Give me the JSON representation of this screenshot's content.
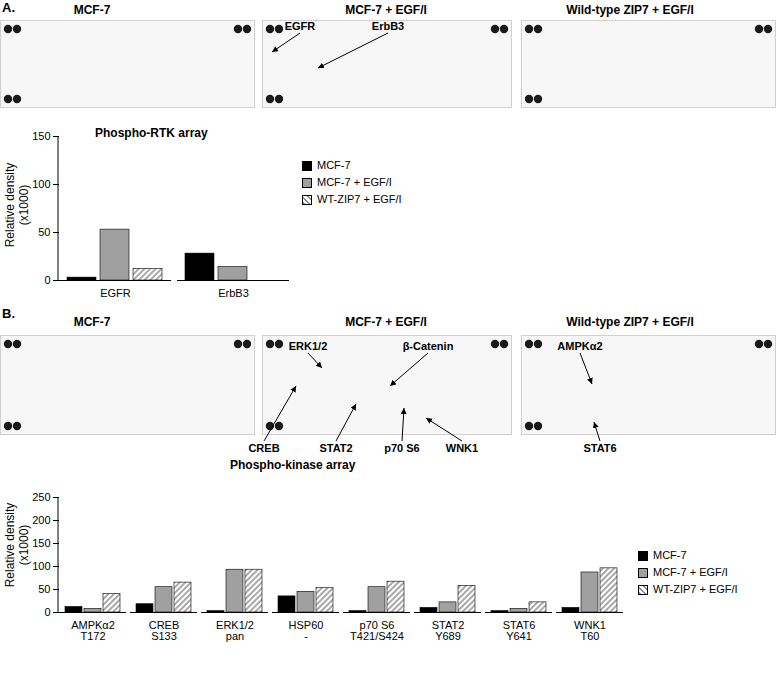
{
  "panel_labels": [
    "A.",
    "B."
  ],
  "blots": [
    {
      "panel": "A.",
      "titles": [
        "MCF-7",
        "MCF-7 + EGF/I",
        "Wild-type ZIP7 + EGF/I"
      ],
      "annotations": [
        "EGFR",
        "ErbB3"
      ]
    },
    {
      "panel": "B.",
      "titles": [
        "MCF-7",
        "MCF-7 + EGF/I",
        "Wild-type ZIP7 + EGF/I"
      ],
      "annotations": [
        "ERK1/2",
        "β-Catenin",
        "CREB",
        "STAT2",
        "p70 S6",
        "WNK1",
        "AMPKα2",
        "STAT6"
      ]
    }
  ],
  "chart_data": [
    {
      "type": "bar",
      "title": "Phospho-RTK array",
      "y_label": "Relative density (x1000)",
      "categories": [
        "EGFR",
        "ErbB3"
      ],
      "series": [
        {
          "name": "MCF-7",
          "color": "#000000",
          "values": [
            3,
            28
          ]
        },
        {
          "name": "MCF-7 + EGF/I",
          "color": "#a0a0a0",
          "values": [
            53,
            14
          ]
        },
        {
          "name": "WT-ZIP7 + EGF/I",
          "color": "#8c8c8c",
          "marker": "hatch",
          "values": [
            12,
            0
          ]
        }
      ],
      "ylim": [
        0,
        150
      ],
      "yticks": [
        0,
        50,
        100,
        150
      ],
      "grid": false,
      "legend": "right"
    },
    {
      "type": "bar",
      "title": "Phospho-kinase array",
      "y_label": "Relative density (x1000)",
      "categories": [
        "AMPKα2",
        "CREB",
        "ERK1/2",
        "HSP60",
        "p70 S6",
        "STAT2",
        "STAT6",
        "WNK1"
      ],
      "category_sublabels": [
        "T172",
        "S133",
        "pan",
        "-",
        "T421/S424",
        "Y689",
        "Y641",
        "T60"
      ],
      "series": [
        {
          "name": "MCF-7",
          "color": "#000000",
          "values": [
            12,
            18,
            3,
            35,
            3,
            10,
            3,
            10
          ]
        },
        {
          "name": "MCF-7 + EGF/I",
          "color": "#a0a0a0",
          "values": [
            8,
            55,
            93,
            45,
            55,
            22,
            8,
            87
          ]
        },
        {
          "name": "WT-ZIP7 + EGF/I",
          "color": "#8c8c8c",
          "marker": "hatch",
          "values": [
            40,
            65,
            93,
            53,
            67,
            58,
            22,
            96
          ]
        }
      ],
      "ylim": [
        0,
        250
      ],
      "yticks": [
        0,
        50,
        100,
        150,
        200,
        250
      ],
      "grid": false,
      "legend": "right"
    }
  ]
}
